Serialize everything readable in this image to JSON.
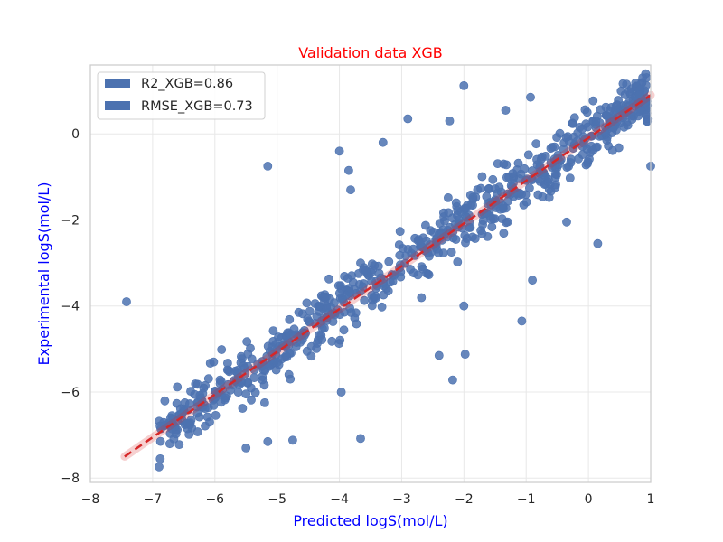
{
  "colors": {
    "title": "#ff0000",
    "axis_label": "#0000ff",
    "points": "#4c72b0",
    "fit_line": "#d62728",
    "grid": "#e8e8e8",
    "frame": "#cccccc"
  },
  "chart_data": {
    "type": "scatter",
    "title": "Validation data XGB",
    "xlabel": "Predicted logS(mol/L)",
    "ylabel": "Experimental logS(mol/L)",
    "xlim": [
      -8,
      1
    ],
    "ylim": [
      -8.1,
      1.6
    ],
    "xticks": [
      "−8",
      "−7",
      "−6",
      "−5",
      "−4",
      "−3",
      "−2",
      "−1",
      "0",
      "1"
    ],
    "yticks": [
      "−8",
      "−6",
      "−4",
      "−2",
      "0"
    ],
    "grid": true,
    "legend_position": "upper-left",
    "legend": [
      "R2_XGB=0.86",
      "RMSE_XGB=0.73"
    ],
    "fit_line": {
      "x": [
        -7.45,
        1.0
      ],
      "y": [
        -7.5,
        0.9
      ]
    },
    "outliers": [
      [
        -7.42,
        -3.9
      ],
      [
        -5.15,
        -0.75
      ],
      [
        -4.0,
        -0.4
      ],
      [
        -3.3,
        -0.2
      ],
      [
        -3.85,
        -0.85
      ],
      [
        -2.0,
        1.12
      ],
      [
        -2.23,
        0.3
      ],
      [
        -2.9,
        0.35
      ],
      [
        -3.82,
        -1.3
      ],
      [
        -1.33,
        0.55
      ],
      [
        -0.93,
        0.85
      ],
      [
        1.0,
        -0.75
      ],
      [
        0.15,
        -2.55
      ],
      [
        -1.07,
        -4.35
      ],
      [
        -3.97,
        -6.0
      ],
      [
        -3.66,
        -7.08
      ],
      [
        -4.75,
        -7.12
      ],
      [
        -2.18,
        -5.72
      ],
      [
        -2.4,
        -5.15
      ],
      [
        -1.98,
        -5.12
      ],
      [
        -5.15,
        -7.15
      ],
      [
        -5.2,
        -6.25
      ],
      [
        -0.9,
        -3.4
      ],
      [
        -2.0,
        -4.0
      ],
      [
        -4.8,
        -5.1
      ],
      [
        -0.35,
        -2.05
      ],
      [
        -5.5,
        -7.3
      ]
    ]
  }
}
